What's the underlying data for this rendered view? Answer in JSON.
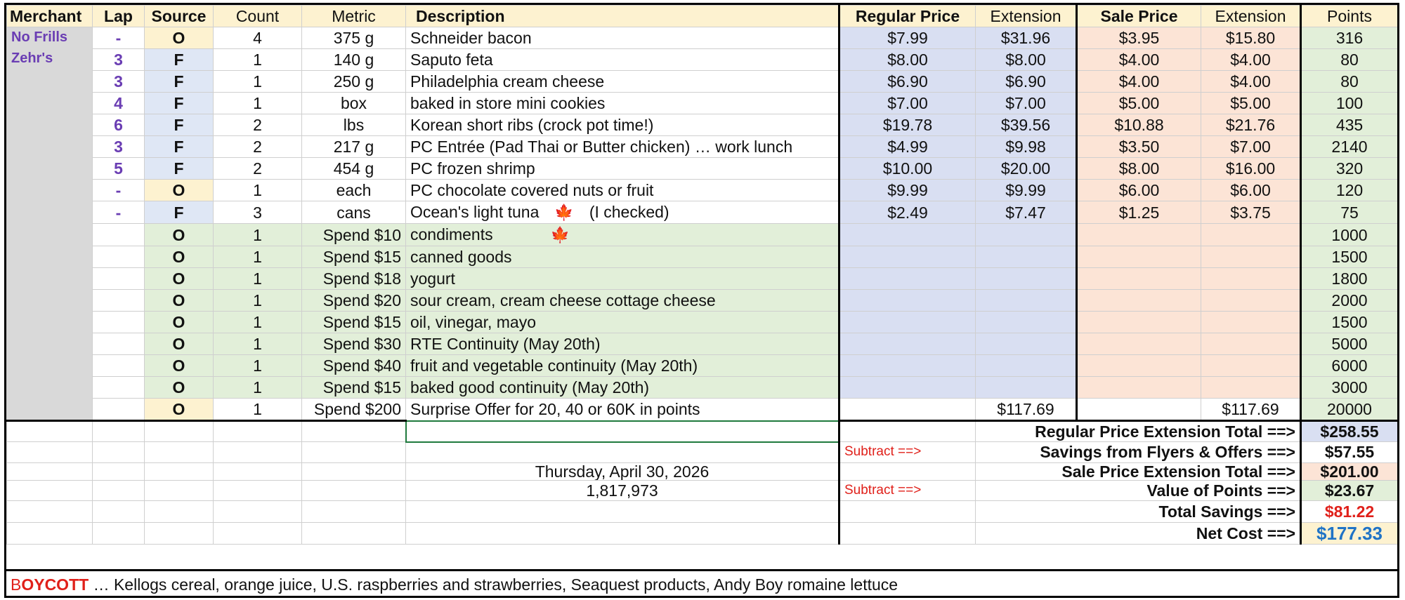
{
  "headers": {
    "merchant": "Merchant",
    "lap": "Lap",
    "source": "Source",
    "count": "Count",
    "metric": "Metric",
    "description": "Description",
    "regular_price": "Regular Price",
    "reg_extension": "Extension",
    "sale_price": "Sale Price",
    "sale_extension": "Extension",
    "points": "Points"
  },
  "merchants": [
    "No Frills",
    "Zehr's"
  ],
  "items": [
    {
      "lap": "-",
      "source": "O",
      "count": "4",
      "metric": "375 g",
      "description": "Schneider bacon",
      "flag": false,
      "note": "",
      "reg": "$7.99",
      "reg_ext": "$31.96",
      "sale": "$3.95",
      "sale_ext": "$15.80",
      "points": "316"
    },
    {
      "lap": "3",
      "source": "F",
      "count": "1",
      "metric": "140 g",
      "description": "Saputo feta",
      "flag": false,
      "note": "",
      "reg": "$8.00",
      "reg_ext": "$8.00",
      "sale": "$4.00",
      "sale_ext": "$4.00",
      "points": "80"
    },
    {
      "lap": "3",
      "source": "F",
      "count": "1",
      "metric": "250 g",
      "description": "Philadelphia cream cheese",
      "flag": false,
      "note": "",
      "reg": "$6.90",
      "reg_ext": "$6.90",
      "sale": "$4.00",
      "sale_ext": "$4.00",
      "points": "80"
    },
    {
      "lap": "4",
      "source": "F",
      "count": "1",
      "metric": "box",
      "description": "baked in store mini cookies",
      "flag": false,
      "note": "",
      "reg": "$7.00",
      "reg_ext": "$7.00",
      "sale": "$5.00",
      "sale_ext": "$5.00",
      "points": "100"
    },
    {
      "lap": "6",
      "source": "F",
      "count": "2",
      "metric": "lbs",
      "description": "Korean short ribs (crock pot time!)",
      "flag": false,
      "note": "",
      "reg": "$19.78",
      "reg_ext": "$39.56",
      "sale": "$10.88",
      "sale_ext": "$21.76",
      "points": "435"
    },
    {
      "lap": "3",
      "source": "F",
      "count": "2",
      "metric": "217 g",
      "description": "PC Entrée (Pad Thai or Butter chicken) … work lunch",
      "flag": false,
      "note": "",
      "reg": "$4.99",
      "reg_ext": "$9.98",
      "sale": "$3.50",
      "sale_ext": "$7.00",
      "points": "2140"
    },
    {
      "lap": "5",
      "source": "F",
      "count": "2",
      "metric": "454 g",
      "description": "PC frozen shrimp",
      "flag": false,
      "note": "",
      "reg": "$10.00",
      "reg_ext": "$20.00",
      "sale": "$8.00",
      "sale_ext": "$16.00",
      "points": "320"
    },
    {
      "lap": "-",
      "source": "O",
      "count": "1",
      "metric": "each",
      "description": "PC chocolate covered nuts or fruit",
      "flag": false,
      "note": "",
      "reg": "$9.99",
      "reg_ext": "$9.99",
      "sale": "$6.00",
      "sale_ext": "$6.00",
      "points": "120"
    },
    {
      "lap": "-",
      "source": "F",
      "count": "3",
      "metric": "cans",
      "description": "Ocean's light tuna",
      "flag": true,
      "note": "(I checked)",
      "reg": "$2.49",
      "reg_ext": "$7.47",
      "sale": "$1.25",
      "sale_ext": "$3.75",
      "points": "75"
    }
  ],
  "offers": [
    {
      "source": "O",
      "count": "1",
      "metric": "Spend $10",
      "description": "condiments",
      "flag": true,
      "points": "1000"
    },
    {
      "source": "O",
      "count": "1",
      "metric": "Spend $15",
      "description": "canned goods",
      "flag": false,
      "points": "1500"
    },
    {
      "source": "O",
      "count": "1",
      "metric": "Spend $18",
      "description": "yogurt",
      "flag": false,
      "points": "1800"
    },
    {
      "source": "O",
      "count": "1",
      "metric": "Spend $20",
      "description": "sour cream, cream cheese cottage cheese",
      "flag": false,
      "points": "2000"
    },
    {
      "source": "O",
      "count": "1",
      "metric": "Spend $15",
      "description": "oil, vinegar, mayo",
      "flag": false,
      "points": "1500"
    },
    {
      "source": "O",
      "count": "1",
      "metric": "Spend $30",
      "description": "RTE Continuity (May 20th)",
      "flag": false,
      "points": "5000"
    },
    {
      "source": "O",
      "count": "1",
      "metric": "Spend $40",
      "description": "fruit and vegetable continuity (May 20th)",
      "flag": false,
      "points": "6000"
    },
    {
      "source": "O",
      "count": "1",
      "metric": "Spend $15",
      "description": "baked good continuity (May 20th)",
      "flag": false,
      "points": "3000"
    }
  ],
  "surprise": {
    "source": "O",
    "count": "1",
    "metric": "Spend $200",
    "description": "Surprise Offer for 20, 40 or 60K in points",
    "reg_ext": "$117.69",
    "sale_ext": "$117.69",
    "points": "20000"
  },
  "summary": {
    "subtract_label": "Subtract ==>",
    "regular_total_label": "Regular Price Extension Total ==>",
    "regular_total": "$258.55",
    "savings_label": "Savings from Flyers & Offers ==>",
    "savings": "$57.55",
    "sale_total_label": "Sale Price Extension Total  ==>",
    "sale_total": "$201.00",
    "points_value_label": "Value of Points ==>",
    "points_value": "$23.67",
    "total_savings_label": "Total Savings  ==>",
    "total_savings": "$81.22",
    "net_cost_label": "Net Cost  ==>",
    "net_cost": "$177.33",
    "date": "Thursday, April 30, 2026",
    "points_balance": "1,817,973"
  },
  "footer": {
    "boycott_b": "B",
    "boycott_rest": "OYCOTT",
    "text": " … Kellogs cereal, orange juice, U.S. raspberries and strawberries, Seaquest products, Andy Boy romaine lettuce"
  },
  "icons": {
    "flag": "canadian-flag-icon"
  },
  "colors": {
    "purple": "#6a3db3",
    "red": "#e0201a",
    "blue": "#1f73c6",
    "header_bg": "#fdf2d0",
    "regular_bg": "#d9dff2",
    "sale_bg": "#fce4d6",
    "points_bg": "#e2efd9"
  }
}
